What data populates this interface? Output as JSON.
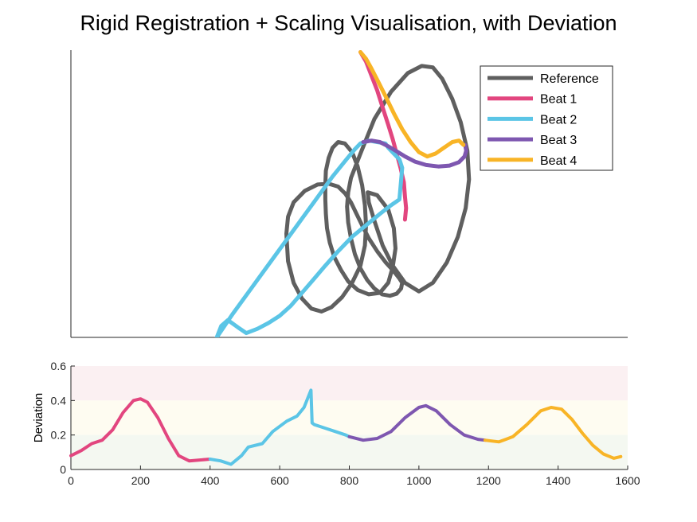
{
  "title": "Rigid Registration + Scaling Visualisation, with Deviation",
  "colors": {
    "reference": "#5f5f5f",
    "beat1": "#e2467f",
    "beat2": "#5bc5e6",
    "beat3": "#7e57b0",
    "beat4": "#f8b426",
    "band_high": "#fbf0f2",
    "band_mid": "#fefcf1",
    "band_low": "#f4f8f1"
  },
  "chart_data": [
    {
      "type": "line",
      "title": "Rigid Registration + Scaling Visualisation, with Deviation",
      "axes_visible": false,
      "xlim": [
        0,
        1
      ],
      "ylim": [
        0,
        1
      ],
      "legend": {
        "placement": "top-right",
        "entries": [
          "Reference",
          "Beat 1",
          "Beat 2",
          "Beat 3",
          "Beat 4"
        ]
      },
      "series": [
        {
          "name": "Reference",
          "color": "#5f5f5f",
          "x": [
            0.387,
            0.39,
            0.4,
            0.42,
            0.443,
            0.463,
            0.48,
            0.493,
            0.503,
            0.513,
            0.523,
            0.535,
            0.55,
            0.565,
            0.58,
            0.59,
            0.595,
            0.593,
            0.585,
            0.573,
            0.559,
            0.545,
            0.532,
            0.52,
            0.51,
            0.503,
            0.498,
            0.496,
            0.498,
            0.503,
            0.52,
            0.545,
            0.575,
            0.605,
            0.63,
            0.65,
            0.667,
            0.685,
            0.7,
            0.712,
            0.715,
            0.709,
            0.695,
            0.675,
            0.65,
            0.625,
            0.6,
            0.578,
            0.56,
            0.546,
            0.535,
            0.533,
            0.55,
            0.57,
            0.58,
            0.583,
            0.578,
            0.57,
            0.555,
            0.535,
            0.515,
            0.498,
            0.485,
            0.473,
            0.465,
            0.46,
            0.458,
            0.457,
            0.457,
            0.458,
            0.463,
            0.47,
            0.48,
            0.492,
            0.505,
            0.515,
            0.523,
            0.528,
            0.53,
            0.528,
            0.52,
            0.505,
            0.487,
            0.468,
            0.45,
            0.432,
            0.415,
            0.4,
            0.39,
            0.387
          ],
          "y": [
            0.361,
            0.42,
            0.47,
            0.51,
            0.532,
            0.535,
            0.525,
            0.5,
            0.47,
            0.43,
            0.39,
            0.345,
            0.3,
            0.262,
            0.23,
            0.205,
            0.19,
            0.17,
            0.152,
            0.145,
            0.15,
            0.17,
            0.2,
            0.24,
            0.29,
            0.345,
            0.4,
            0.455,
            0.505,
            0.555,
            0.64,
            0.76,
            0.855,
            0.92,
            0.945,
            0.94,
            0.9,
            0.83,
            0.75,
            0.65,
            0.55,
            0.45,
            0.35,
            0.26,
            0.19,
            0.16,
            0.19,
            0.25,
            0.32,
            0.4,
            0.47,
            0.505,
            0.495,
            0.445,
            0.38,
            0.31,
            0.245,
            0.19,
            0.155,
            0.15,
            0.165,
            0.195,
            0.235,
            0.28,
            0.33,
            0.38,
            0.43,
            0.48,
            0.53,
            0.58,
            0.625,
            0.66,
            0.68,
            0.675,
            0.645,
            0.595,
            0.53,
            0.46,
            0.39,
            0.32,
            0.25,
            0.19,
            0.14,
            0.105,
            0.09,
            0.1,
            0.135,
            0.19,
            0.265,
            0.361
          ]
        },
        {
          "name": "Beat 1",
          "color": "#e2467f",
          "x": [
            0.52,
            0.53,
            0.54,
            0.55,
            0.56,
            0.57,
            0.578,
            0.585,
            0.592,
            0.598,
            0.6,
            0.602,
            0.6
          ],
          "y": [
            0.993,
            0.96,
            0.91,
            0.86,
            0.8,
            0.74,
            0.69,
            0.64,
            0.59,
            0.54,
            0.49,
            0.45,
            0.41
          ]
        },
        {
          "name": "Beat 2",
          "color": "#5bc5e6",
          "x": [
            0.262,
            0.29,
            0.32,
            0.35,
            0.38,
            0.41,
            0.44,
            0.47,
            0.495,
            0.51,
            0.52,
            0.535,
            0.55,
            0.565,
            0.57,
            0.58,
            0.59,
            0.595,
            0.59,
            0.575,
            0.555,
            0.53,
            0.505,
            0.48,
            0.457,
            0.435,
            0.415,
            0.395,
            0.375,
            0.355,
            0.335,
            0.315,
            0.3,
            0.282,
            0.27,
            0.262
          ],
          "y": [
            0.0,
            0.08,
            0.16,
            0.24,
            0.32,
            0.4,
            0.48,
            0.56,
            0.62,
            0.655,
            0.675,
            0.685,
            0.68,
            0.675,
            0.66,
            0.64,
            0.62,
            0.59,
            0.48,
            0.46,
            0.43,
            0.39,
            0.35,
            0.3,
            0.25,
            0.2,
            0.155,
            0.11,
            0.075,
            0.05,
            0.03,
            0.015,
            0.035,
            0.06,
            0.04,
            0.0
          ]
        },
        {
          "name": "Beat 3",
          "color": "#7e57b0",
          "x": [
            0.525,
            0.54,
            0.555,
            0.57,
            0.585,
            0.6,
            0.618,
            0.638,
            0.66,
            0.68,
            0.697,
            0.707,
            0.71,
            0.708
          ],
          "y": [
            0.68,
            0.685,
            0.68,
            0.665,
            0.648,
            0.63,
            0.612,
            0.6,
            0.595,
            0.598,
            0.61,
            0.63,
            0.65,
            0.67
          ]
        },
        {
          "name": "Beat 4",
          "color": "#f8b426",
          "x": [
            0.52,
            0.53,
            0.54,
            0.552,
            0.565,
            0.58,
            0.595,
            0.61,
            0.625,
            0.64,
            0.655,
            0.67,
            0.685,
            0.697,
            0.705
          ],
          "y": [
            0.993,
            0.97,
            0.935,
            0.89,
            0.84,
            0.78,
            0.725,
            0.68,
            0.645,
            0.63,
            0.64,
            0.66,
            0.68,
            0.685,
            0.67
          ]
        }
      ]
    },
    {
      "type": "line",
      "ylabel": "Deviation",
      "xlabel": "",
      "xlim": [
        0,
        1600
      ],
      "ylim": [
        0,
        0.6
      ],
      "xticks": [
        0,
        200,
        400,
        600,
        800,
        1000,
        1200,
        1400,
        1600
      ],
      "yticks": [
        0,
        0.2,
        0.4,
        0.6
      ],
      "bands": [
        {
          "from": 0.4,
          "to": 0.6,
          "color": "#fbf0f2"
        },
        {
          "from": 0.2,
          "to": 0.4,
          "color": "#fefcf1"
        },
        {
          "from": 0,
          "to": 0.2,
          "color": "#f4f8f1"
        }
      ],
      "series": [
        {
          "name": "Beat 1",
          "color": "#e2467f",
          "x": [
            0,
            30,
            60,
            90,
            120,
            150,
            180,
            200,
            220,
            250,
            280,
            310,
            340,
            370,
            400
          ],
          "y": [
            0.08,
            0.11,
            0.15,
            0.17,
            0.23,
            0.33,
            0.4,
            0.41,
            0.39,
            0.3,
            0.18,
            0.08,
            0.05,
            0.055,
            0.06
          ]
        },
        {
          "name": "Beat 2",
          "color": "#5bc5e6",
          "x": [
            400,
            430,
            460,
            490,
            510,
            550,
            580,
            620,
            650,
            670,
            690,
            693,
            700,
            730,
            760,
            790,
            800
          ],
          "y": [
            0.06,
            0.05,
            0.03,
            0.08,
            0.13,
            0.15,
            0.22,
            0.28,
            0.31,
            0.36,
            0.46,
            0.27,
            0.26,
            0.24,
            0.22,
            0.2,
            0.19
          ]
        },
        {
          "name": "Beat 3",
          "color": "#7e57b0",
          "x": [
            800,
            840,
            880,
            920,
            960,
            1000,
            1020,
            1050,
            1090,
            1130,
            1170,
            1190
          ],
          "y": [
            0.19,
            0.17,
            0.18,
            0.22,
            0.3,
            0.36,
            0.37,
            0.34,
            0.26,
            0.2,
            0.175,
            0.17
          ]
        },
        {
          "name": "Beat 4",
          "color": "#f8b426",
          "x": [
            1190,
            1230,
            1270,
            1310,
            1350,
            1380,
            1410,
            1440,
            1470,
            1500,
            1530,
            1560,
            1580
          ],
          "y": [
            0.17,
            0.16,
            0.19,
            0.26,
            0.34,
            0.36,
            0.35,
            0.29,
            0.21,
            0.14,
            0.09,
            0.065,
            0.075
          ]
        }
      ]
    }
  ]
}
